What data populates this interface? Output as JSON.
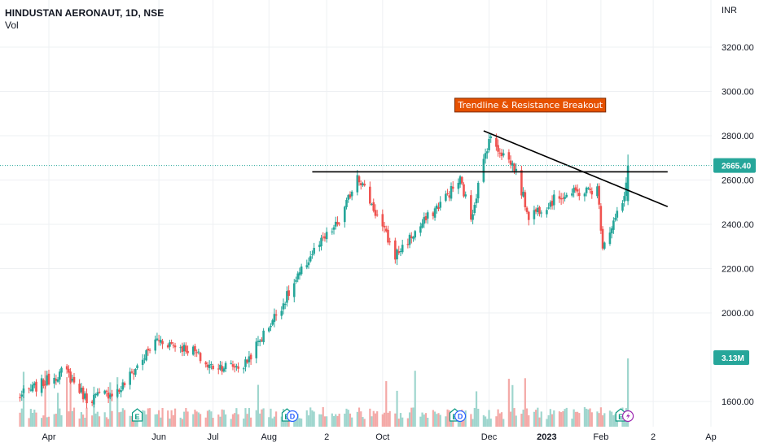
{
  "header": {
    "symbol_line": "HINDUSTAN AERONAUT, 1D, NSE",
    "indicator": "Vol"
  },
  "axis": {
    "currency": "INR"
  },
  "colors": {
    "up": "#26a69a",
    "down": "#ef5350",
    "up_volume": "#9fd6ce",
    "down_volume": "#f4a9a7",
    "price_badge": "#26a69a",
    "annotation_bg": "#e65100",
    "line": "#000000"
  },
  "chart_data": {
    "type": "candlestick",
    "y_ticks": [
      {
        "value": 1600,
        "label": "1600.00"
      },
      {
        "value": 2000,
        "label": "2000.00"
      },
      {
        "value": 2200,
        "label": "2200.00"
      },
      {
        "value": 2400,
        "label": "2400.00"
      },
      {
        "value": 2600,
        "label": "2600.00"
      },
      {
        "value": 2800,
        "label": "2800.00"
      },
      {
        "value": 3000,
        "label": "3000.00"
      },
      {
        "value": 3200,
        "label": "3200.00"
      }
    ],
    "ylim": [
      1495,
      3385
    ],
    "x_ticks": [
      {
        "date": "2022-04-01",
        "label": "Apr",
        "bold": false
      },
      {
        "date": "2022-06-01",
        "label": "Jun",
        "bold": false
      },
      {
        "date": "2022-07-01",
        "label": "Jul",
        "bold": false
      },
      {
        "date": "2022-08-01",
        "label": "Aug",
        "bold": false
      },
      {
        "date": "2022-09-02",
        "label": "2",
        "bold": false
      },
      {
        "date": "2022-10-03",
        "label": "Oct",
        "bold": false
      },
      {
        "date": "2022-12-01",
        "label": "Dec",
        "bold": false
      },
      {
        "date": "2023-01-02",
        "label": "2023",
        "bold": true
      },
      {
        "date": "2023-02-01",
        "label": "Feb",
        "bold": false
      },
      {
        "date": "2023-03-02",
        "label": "2",
        "bold": false
      },
      {
        "date": "2023-04-03",
        "label": "Ap",
        "bold": false
      }
    ],
    "last_price": {
      "value": 2665.4,
      "label": "2665.40"
    },
    "last_volume": {
      "label": "3.13M"
    },
    "grid": true,
    "anchors": [
      {
        "date": "2022-03-15",
        "price": 1620
      },
      {
        "date": "2022-04-10",
        "price": 1740
      },
      {
        "date": "2022-04-22",
        "price": 1610
      },
      {
        "date": "2022-05-10",
        "price": 1650
      },
      {
        "date": "2022-05-31",
        "price": 1880
      },
      {
        "date": "2022-06-20",
        "price": 1830
      },
      {
        "date": "2022-06-28",
        "price": 1760
      },
      {
        "date": "2022-07-18",
        "price": 1760
      },
      {
        "date": "2022-08-10",
        "price": 2060
      },
      {
        "date": "2022-08-25",
        "price": 2270
      },
      {
        "date": "2022-09-10",
        "price": 2420
      },
      {
        "date": "2022-09-19",
        "price": 2630
      },
      {
        "date": "2022-10-10",
        "price": 2260
      },
      {
        "date": "2022-11-15",
        "price": 2600
      },
      {
        "date": "2022-11-21",
        "price": 2430
      },
      {
        "date": "2022-12-01",
        "price": 2790
      },
      {
        "date": "2022-12-15",
        "price": 2660
      },
      {
        "date": "2022-12-23",
        "price": 2440
      },
      {
        "date": "2023-01-10",
        "price": 2530
      },
      {
        "date": "2023-01-30",
        "price": 2560
      },
      {
        "date": "2023-02-02",
        "price": 2310
      },
      {
        "date": "2023-02-14",
        "price": 2510
      },
      {
        "date": "2023-02-16",
        "price": 2665.4
      }
    ],
    "trendlines": [
      {
        "name": "resistance",
        "from": {
          "date": "2022-08-25",
          "price": 2637
        },
        "to": {
          "date": "2023-03-10",
          "price": 2637
        }
      },
      {
        "name": "trendline",
        "from": {
          "date": "2022-11-28",
          "price": 2822
        },
        "to": {
          "date": "2023-03-10",
          "price": 2480
        }
      }
    ],
    "annotation": {
      "text": "Trendline & Resistance Breakout",
      "date": "2022-11-12",
      "price": 2940
    },
    "events": [
      {
        "date": "2022-05-20",
        "type": "E"
      },
      {
        "date": "2022-08-11",
        "type": "E"
      },
      {
        "date": "2022-08-14",
        "type": "D"
      },
      {
        "date": "2022-11-12",
        "type": "E"
      },
      {
        "date": "2022-11-15",
        "type": "D"
      },
      {
        "date": "2023-02-12",
        "type": "E"
      },
      {
        "date": "2023-02-16",
        "type": "flash"
      }
    ]
  }
}
